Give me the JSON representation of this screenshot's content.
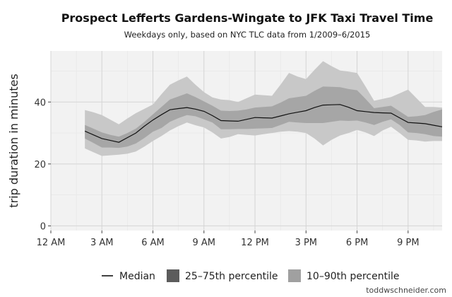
{
  "chart_data": {
    "type": "area",
    "title": "Prospect Lefferts Gardens-Wingate to JFK Taxi Travel Time",
    "subtitle": "Weekdays only, based on NYC TLC data from 1/2009–6/2015",
    "xlabel": "",
    "ylabel": "trip duration in minutes",
    "xlim": [
      0,
      23
    ],
    "ylim": [
      -1.5,
      56.5
    ],
    "x_ticks": [
      {
        "value": 0,
        "label": "12 AM"
      },
      {
        "value": 3,
        "label": "3 AM"
      },
      {
        "value": 6,
        "label": "6 AM"
      },
      {
        "value": 9,
        "label": "9 AM"
      },
      {
        "value": 12,
        "label": "12 PM"
      },
      {
        "value": 15,
        "label": "3 PM"
      },
      {
        "value": 18,
        "label": "6 PM"
      },
      {
        "value": 21,
        "label": "9 PM"
      }
    ],
    "y_ticks": [
      {
        "value": 0,
        "label": "0"
      },
      {
        "value": 20,
        "label": "20"
      },
      {
        "value": 40,
        "label": "40"
      }
    ],
    "grid": true,
    "legend_position": "bottom",
    "x": [
      2,
      2.5,
      3,
      3.5,
      4,
      4.5,
      5,
      5.5,
      6,
      6.5,
      7,
      7.5,
      8,
      8.5,
      9,
      9.5,
      10,
      10.5,
      11,
      11.5,
      12,
      12.5,
      13,
      13.5,
      14,
      14.5,
      15,
      15.5,
      16,
      16.5,
      17,
      17.5,
      18,
      18.5,
      19,
      19.5,
      20,
      20.5,
      21,
      21.5,
      22,
      22.5,
      23
    ],
    "series": [
      {
        "name": "10–90th percentile",
        "color": "#c8c8c8",
        "lower": [
          25.0,
          23.8,
          22.6,
          22.8,
          23.0,
          23.3,
          24.0,
          25.6,
          27.4,
          29.0,
          30.8,
          32.2,
          33.4,
          32.5,
          31.8,
          30.2,
          28.2,
          28.7,
          29.6,
          29.4,
          29.2,
          29.6,
          30.0,
          30.4,
          30.6,
          30.4,
          30.0,
          28.2,
          26.0,
          27.8,
          29.2,
          30.0,
          31.0,
          30.2,
          29.0,
          30.8,
          32.0,
          30.0,
          27.8,
          27.6,
          27.2,
          27.4,
          27.4
        ],
        "upper": [
          37.4,
          36.7,
          35.8,
          34.3,
          32.8,
          34.7,
          36.4,
          37.8,
          39.2,
          42.5,
          45.6,
          47.0,
          48.2,
          45.6,
          43.2,
          41.5,
          40.8,
          40.6,
          40.0,
          41.2,
          42.4,
          42.2,
          42.0,
          45.6,
          49.4,
          48.2,
          47.4,
          50.4,
          53.2,
          51.6,
          50.2,
          49.8,
          49.4,
          45.0,
          40.4,
          41.0,
          41.6,
          42.8,
          44.0,
          41.2,
          38.4,
          38.4,
          38.2
        ]
      },
      {
        "name": "25–75th percentile",
        "color": "#a6a6a6",
        "lower": [
          28.2,
          26.8,
          25.3,
          25.3,
          25.2,
          25.6,
          26.6,
          28.4,
          30.4,
          31.6,
          33.6,
          34.8,
          35.8,
          35.4,
          34.4,
          33.4,
          31.2,
          31.2,
          31.3,
          31.3,
          31.4,
          31.5,
          31.6,
          32.6,
          33.6,
          33.4,
          33.2,
          33.2,
          33.2,
          33.6,
          34.0,
          33.9,
          34.0,
          33.4,
          32.6,
          33.6,
          34.4,
          32.6,
          30.2,
          30.0,
          29.6,
          29.0,
          28.8
        ],
        "upper": [
          32.6,
          31.4,
          30.2,
          29.4,
          28.8,
          30.0,
          31.4,
          33.6,
          36.0,
          38.4,
          40.8,
          41.8,
          42.8,
          41.6,
          40.2,
          38.8,
          37.2,
          37.1,
          37.2,
          37.6,
          38.2,
          38.4,
          38.6,
          39.8,
          41.2,
          41.6,
          42.0,
          43.6,
          45.0,
          44.9,
          44.8,
          44.2,
          43.8,
          41.0,
          38.0,
          38.4,
          38.8,
          37.0,
          35.2,
          35.4,
          35.8,
          36.8,
          37.6
        ]
      },
      {
        "name": "Median",
        "color": "#111111",
        "values": [
          30.6,
          29.4,
          28.2,
          27.6,
          27.0,
          28.5,
          30.0,
          32.2,
          34.2,
          35.9,
          37.5,
          37.9,
          38.2,
          37.7,
          37.0,
          35.6,
          34.0,
          33.9,
          33.8,
          34.4,
          35.0,
          34.9,
          34.8,
          35.5,
          36.2,
          36.7,
          37.2,
          38.2,
          39.0,
          39.1,
          39.2,
          38.3,
          37.2,
          36.9,
          36.6,
          36.5,
          36.4,
          34.9,
          33.4,
          33.2,
          33.0,
          32.5,
          32.0
        ]
      }
    ],
    "legend": [
      {
        "label": "Median",
        "kind": "line",
        "color": "#111111"
      },
      {
        "label": "25–75th percentile",
        "kind": "box",
        "color": "#5c5c5c"
      },
      {
        "label": "10–90th percentile",
        "kind": "box",
        "color": "#a0a0a0"
      }
    ],
    "credit": "toddwschneider.com"
  },
  "colors": {
    "panel_background": "#f2f2f2",
    "grid_major": "#d4d4d4",
    "grid_minor": "#e6e6e6",
    "band_outer": "#c8c8c8",
    "band_inner": "#a6a6a6",
    "median_line": "#111111"
  }
}
